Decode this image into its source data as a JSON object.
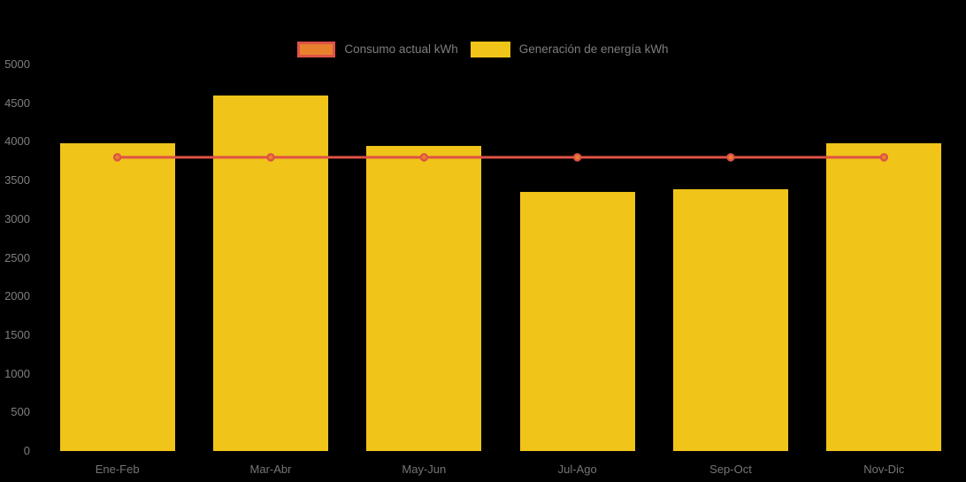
{
  "colors": {
    "background": "#000000",
    "bar_fill": "#f0c419",
    "line_stroke": "#de5246",
    "marker_fill": "#e8802d",
    "axis_text": "#7f7f7f",
    "legend_text": "#7d7d7d"
  },
  "legend": {
    "items": [
      {
        "label": "Consumo actual kWh"
      },
      {
        "label": "Generación de energía kWh"
      }
    ]
  },
  "chart_data": {
    "type": "bar",
    "title": "",
    "xlabel": "",
    "ylabel": "",
    "categories": [
      "Ene-Feb",
      "Mar-Abr",
      "May-Jun",
      "Jul-Ago",
      "Sep-Oct",
      "Nov-Dic"
    ],
    "series": [
      {
        "name": "Consumo actual kWh",
        "type": "line",
        "values": [
          3800,
          3800,
          3800,
          3800,
          3800,
          3800
        ],
        "color": "#de5246",
        "marker_fill": "#e8802d"
      },
      {
        "name": "Generación de energía kWh",
        "type": "bar",
        "values": [
          3980,
          4600,
          3950,
          3350,
          3390,
          3980
        ],
        "color": "#f0c419"
      }
    ],
    "ylim": [
      0,
      5000
    ],
    "ytick_step": 500,
    "yticks": [
      0,
      500,
      1000,
      1500,
      2000,
      2500,
      3000,
      3500,
      4000,
      4500,
      5000
    ],
    "grid": false,
    "legend_position": "top-center"
  }
}
